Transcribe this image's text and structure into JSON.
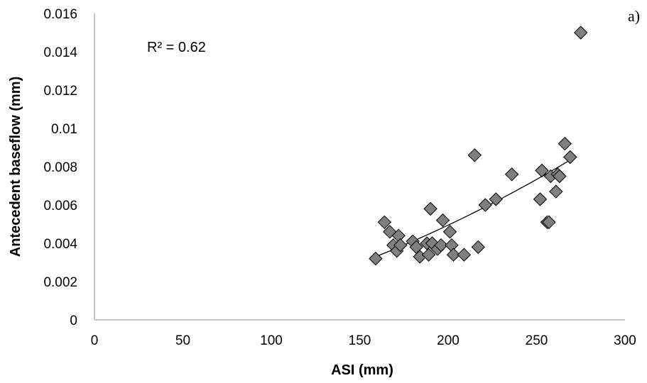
{
  "chart_data": {
    "type": "scatter",
    "panel_label": "a)",
    "xlabel": "ASI (mm)",
    "ylabel": "Antecedent baseflow (mm)",
    "xlim": [
      0,
      300
    ],
    "ylim": [
      0,
      0.016
    ],
    "x_ticks": [
      "0",
      "50",
      "100",
      "150",
      "200",
      "250",
      "300"
    ],
    "y_ticks": [
      "0",
      "0.002",
      "0.004",
      "0.006",
      "0.008",
      "0.01",
      "0.012",
      "0.014",
      "0.016"
    ],
    "grid": false,
    "legend": "none",
    "annotation": "R² = 0.62",
    "marker": "diamond",
    "marker_color": "#7f7f7f",
    "trendline": {
      "type": "curve",
      "color": "#000000",
      "from": [
        159,
        0.0033
      ],
      "to": [
        270,
        0.0084
      ]
    },
    "series": [
      {
        "points": [
          [
            159,
            0.0032
          ],
          [
            164,
            0.0051
          ],
          [
            167,
            0.0046
          ],
          [
            169,
            0.0039
          ],
          [
            171,
            0.0036
          ],
          [
            172,
            0.0044
          ],
          [
            173,
            0.0039
          ],
          [
            180,
            0.0041
          ],
          [
            182,
            0.0038
          ],
          [
            184,
            0.0033
          ],
          [
            188,
            0.004
          ],
          [
            189,
            0.0034
          ],
          [
            190,
            0.0058
          ],
          [
            191,
            0.004
          ],
          [
            194,
            0.0037
          ],
          [
            196,
            0.0039
          ],
          [
            197,
            0.0052
          ],
          [
            201,
            0.0046
          ],
          [
            202,
            0.0039
          ],
          [
            203,
            0.0034
          ],
          [
            209,
            0.0034
          ],
          [
            215,
            0.0086
          ],
          [
            217,
            0.0038
          ],
          [
            221,
            0.006
          ],
          [
            227,
            0.0063
          ],
          [
            236,
            0.0076
          ],
          [
            252,
            0.0063
          ],
          [
            253,
            0.0078
          ],
          [
            256,
            0.0051
          ],
          [
            257,
            0.0051
          ],
          [
            258,
            0.0075
          ],
          [
            261,
            0.0067
          ],
          [
            262,
            0.0076
          ],
          [
            263,
            0.0075
          ],
          [
            266,
            0.0092
          ],
          [
            269,
            0.0085
          ],
          [
            275,
            0.015
          ]
        ]
      }
    ]
  }
}
